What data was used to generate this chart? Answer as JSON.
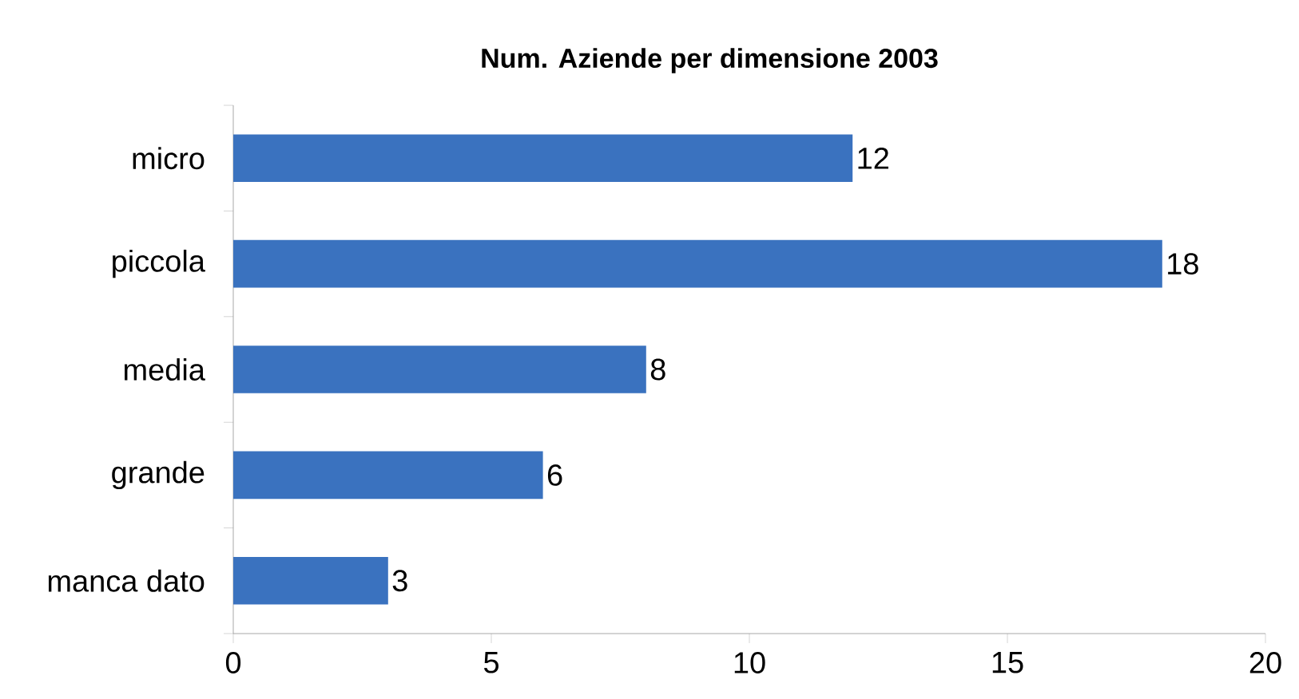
{
  "chart_data": {
    "type": "bar",
    "title": "Num. Aziende per dimensione 2003",
    "orientation": "horizontal",
    "categories": [
      "micro",
      "piccola",
      "media",
      "grande",
      "manca dato"
    ],
    "values": [
      12,
      18,
      8,
      6,
      3
    ],
    "color": "#3a72bf",
    "xlim": [
      0,
      20
    ],
    "xticks": [
      0,
      5,
      10,
      15,
      20
    ],
    "data_labels": true
  }
}
